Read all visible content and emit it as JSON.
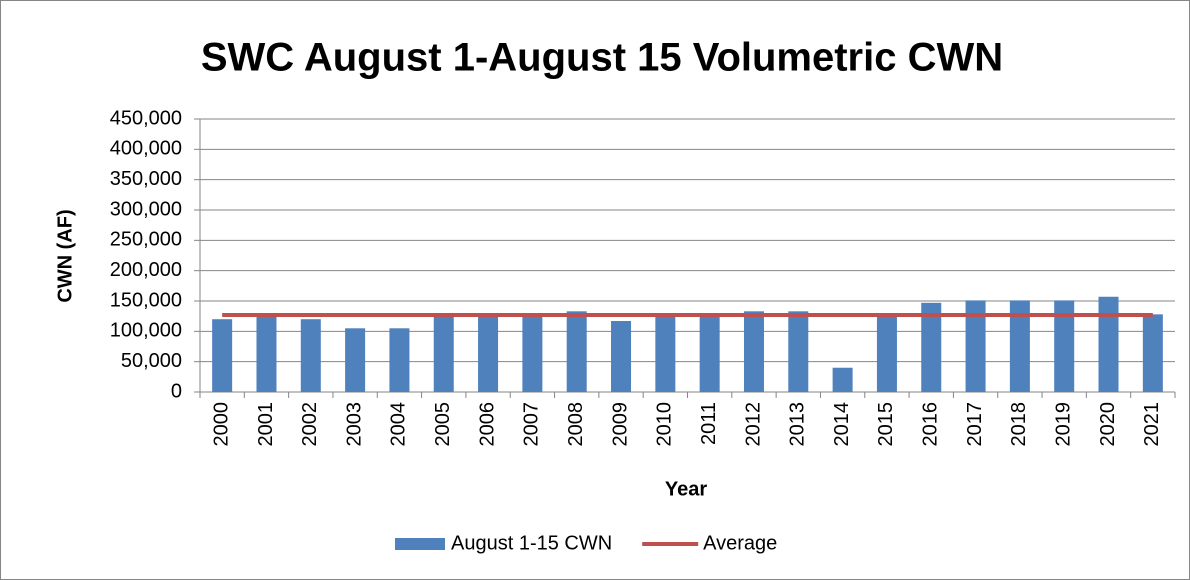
{
  "chart_data": {
    "type": "bar",
    "title": "SWC August 1-August 15 Volumetric CWN",
    "x_label": "Year",
    "y_label": "CWN (AF)",
    "categories": [
      "2000",
      "2001",
      "2002",
      "2003",
      "2004",
      "2005",
      "2006",
      "2007",
      "2008",
      "2009",
      "2010",
      "2011",
      "2012",
      "2013",
      "2014",
      "2015",
      "2016",
      "2017",
      "2018",
      "2019",
      "2020",
      "2021"
    ],
    "series": [
      {
        "name": "August 1-15 CWN",
        "type": "bar",
        "color": "#4f81bd",
        "values": [
          120000,
          130000,
          120000,
          105000,
          105000,
          128000,
          128000,
          127000,
          133000,
          117000,
          127000,
          128000,
          133000,
          133000,
          40000,
          125000,
          147000,
          151000,
          151000,
          151000,
          157000,
          128000
        ]
      },
      {
        "name": "Average",
        "type": "line",
        "color": "#c0504d",
        "values": [
          127000,
          127000,
          127000,
          127000,
          127000,
          127000,
          127000,
          127000,
          127000,
          127000,
          127000,
          127000,
          127000,
          127000,
          127000,
          127000,
          127000,
          127000,
          127000,
          127000,
          127000,
          127000
        ]
      }
    ],
    "ylim": [
      0,
      450000
    ],
    "yticks": [
      0,
      {
        "value": 50000,
        "label": "50,000"
      },
      {
        "value": 100000,
        "label": "100,000"
      },
      {
        "value": 150000,
        "label": "150,000"
      },
      {
        "value": 200000,
        "label": "200,000"
      },
      {
        "value": 250000,
        "label": "250,000"
      },
      {
        "value": 300000,
        "label": "300,000"
      },
      {
        "value": 350000,
        "label": "350,000"
      },
      {
        "value": 400000,
        "label": "400,000"
      },
      {
        "value": 450000,
        "label": "450,000"
      }
    ],
    "grid": true,
    "legend": "bottom"
  }
}
